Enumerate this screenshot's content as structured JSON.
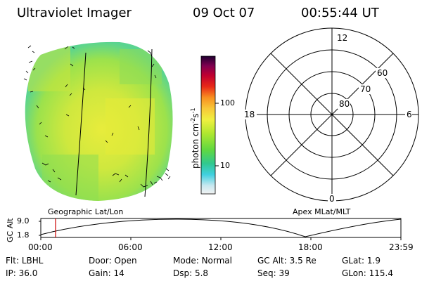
{
  "header": {
    "title": "Ultraviolet Imager",
    "date": "09 Oct 07",
    "time": "00:55:44 UT"
  },
  "image_panel": {
    "caption": "Geographic Lat/Lon"
  },
  "colorbar": {
    "unit_label": "photon cm",
    "unit_exp1": "-2",
    "unit_mid": "s",
    "unit_exp2": "-1",
    "tick_labels": [
      "100",
      "10"
    ]
  },
  "polar_panel": {
    "caption": "Apex MLat/MLT",
    "mlt_labels": [
      "12",
      "18",
      "6",
      "0"
    ],
    "lat_labels": [
      "60",
      "70",
      "80"
    ]
  },
  "altitude_plot": {
    "ylabel": "GC Alt",
    "y_ticks": [
      "9.0",
      "1.8"
    ],
    "x_ticks": [
      "00:00",
      "06:00",
      "12:00",
      "18:00",
      "23:59"
    ],
    "marker_color": "#cc0000"
  },
  "info": {
    "row1": [
      {
        "label": "Flt:",
        "value": "LBHL"
      },
      {
        "label": "Door:",
        "value": "Open"
      },
      {
        "label": "Mode:",
        "value": "Normal"
      },
      {
        "label": "GC Alt:",
        "value": "3.5 Re"
      },
      {
        "label": "GLat:",
        "value": "1.9"
      }
    ],
    "row2": [
      {
        "label": "IP:",
        "value": "36.0"
      },
      {
        "label": "Gain:",
        "value": "14"
      },
      {
        "label": "Dsp:",
        "value": "5.8"
      },
      {
        "label": "Seq:",
        "value": "39"
      },
      {
        "label": "GLon:",
        "value": "115.4"
      }
    ]
  },
  "colors": {
    "disk_base": "#9be04a",
    "disk_bright": "#e6ee3a",
    "disk_edge": "#52d49a"
  }
}
